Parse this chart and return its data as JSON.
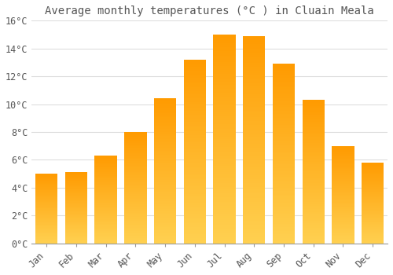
{
  "title": "Average monthly temperatures (°C ) in Cluain Meala",
  "months": [
    "Jan",
    "Feb",
    "Mar",
    "Apr",
    "May",
    "Jun",
    "Jul",
    "Aug",
    "Sep",
    "Oct",
    "Nov",
    "Dec"
  ],
  "values": [
    5.0,
    5.1,
    6.3,
    8.0,
    10.4,
    13.2,
    15.0,
    14.9,
    12.9,
    10.3,
    7.0,
    5.8
  ],
  "bar_color_top": "#FFA500",
  "bar_color_bottom": "#FFD060",
  "background_color": "#FFFFFF",
  "grid_color": "#DDDDDD",
  "text_color": "#555555",
  "title_fontsize": 10,
  "tick_fontsize": 8.5,
  "ylim": [
    0,
    16
  ],
  "yticks": [
    0,
    2,
    4,
    6,
    8,
    10,
    12,
    14,
    16
  ],
  "ytick_labels": [
    "0°C",
    "2°C",
    "4°C",
    "6°C",
    "8°C",
    "10°C",
    "12°C",
    "14°C",
    "16°C"
  ]
}
